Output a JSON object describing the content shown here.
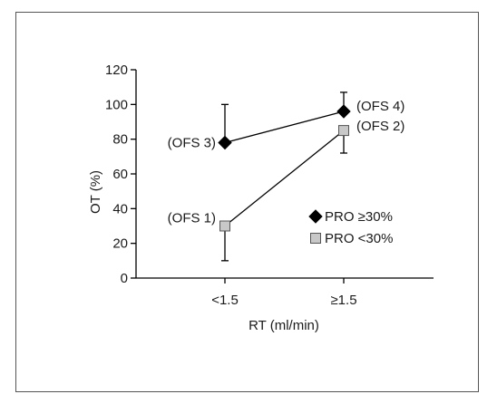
{
  "chart_data": {
    "type": "line",
    "xlabel": "RT (ml/min)",
    "ylabel": "OT (%)",
    "categories": [
      "<1.5",
      "≥1.5"
    ],
    "ylim": [
      0,
      120
    ],
    "yticks": [
      0,
      20,
      40,
      60,
      80,
      100,
      120
    ],
    "grid": false,
    "legend_position": "right",
    "series": [
      {
        "name": "PRO ≥30%",
        "marker": "diamond",
        "color": "#000000",
        "values": [
          78,
          96
        ],
        "error_upper": [
          100,
          107
        ],
        "error_lower": [
          null,
          null
        ],
        "point_labels": [
          "(OFS 3)",
          "(OFS 4)"
        ]
      },
      {
        "name": "PRO <30%",
        "marker": "square",
        "color": "#c8c8c8",
        "values": [
          30,
          85
        ],
        "error_upper": [
          null,
          null
        ],
        "error_lower": [
          10,
          72
        ],
        "point_labels": [
          "(OFS 1)",
          "(OFS 2)"
        ]
      }
    ]
  }
}
